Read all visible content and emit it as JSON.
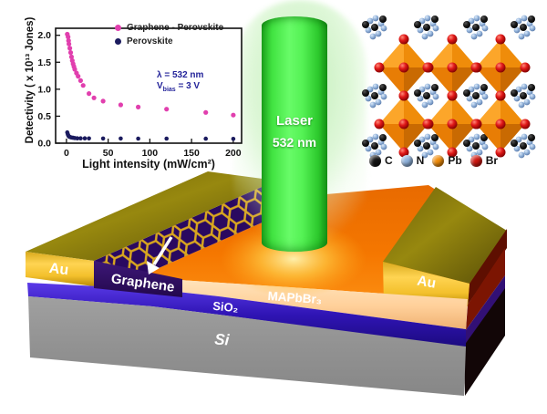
{
  "chart_data": {
    "type": "scatter",
    "title": "",
    "xlabel": "Light intensity (mW/cm²)",
    "ylabel": "Detectivity ( x 10¹³ Jones)",
    "xlim": [
      -13,
      210
    ],
    "ylim": [
      0,
      2.13
    ],
    "x_ticks": [
      "0",
      "50",
      "100",
      "150",
      "200"
    ],
    "y_ticks": [
      "0.0",
      "0.5",
      "1.0",
      "1.5",
      "2.0"
    ],
    "grid": false,
    "legend_position": "top-right",
    "annotation": {
      "line1": "λ = 532 nm",
      "v_pre": "V",
      "v_sub": "bias",
      "v_post": " = 3 V"
    },
    "series": [
      {
        "name": "Graphene - Perovskite",
        "color": "#e13fae",
        "points": [
          [
            1,
            2.02
          ],
          [
            2,
            1.97
          ],
          [
            2.5,
            1.9
          ],
          [
            3,
            1.84
          ],
          [
            4,
            1.76
          ],
          [
            5,
            1.68
          ],
          [
            6,
            1.6
          ],
          [
            7,
            1.53
          ],
          [
            8,
            1.47
          ],
          [
            9,
            1.42
          ],
          [
            10,
            1.37
          ],
          [
            12,
            1.3
          ],
          [
            14,
            1.24
          ],
          [
            17,
            1.16
          ],
          [
            20,
            1.07
          ],
          [
            27,
            0.92
          ],
          [
            33,
            0.84
          ],
          [
            44,
            0.78
          ],
          [
            65,
            0.71
          ],
          [
            86,
            0.67
          ],
          [
            120,
            0.63
          ],
          [
            167,
            0.57
          ],
          [
            200,
            0.52
          ]
        ]
      },
      {
        "name": "Perovskite",
        "color": "#1b1b5e",
        "points": [
          [
            1,
            0.2
          ],
          [
            1.5,
            0.17
          ],
          [
            2,
            0.15
          ],
          [
            2.5,
            0.135
          ],
          [
            3,
            0.125
          ],
          [
            4,
            0.115
          ],
          [
            5,
            0.11
          ],
          [
            6,
            0.105
          ],
          [
            8,
            0.1
          ],
          [
            10,
            0.095
          ],
          [
            13,
            0.09
          ],
          [
            17,
            0.09
          ],
          [
            22,
            0.09
          ],
          [
            27,
            0.088
          ],
          [
            44,
            0.087
          ],
          [
            65,
            0.086
          ],
          [
            86,
            0.085
          ],
          [
            120,
            0.084
          ],
          [
            167,
            0.082
          ],
          [
            200,
            0.08
          ]
        ]
      }
    ]
  },
  "laser": {
    "line1": "Laser",
    "line2": "532 nm",
    "beam_color": "#3ae532"
  },
  "crystal": {
    "legend": [
      {
        "label": "C",
        "color": "#141414"
      },
      {
        "label": "N",
        "color": "#8fb2dc"
      },
      {
        "label": "Pb",
        "color": "#f08c0a"
      },
      {
        "label": "Br",
        "color": "#cf1710"
      }
    ]
  },
  "device": {
    "au_left": "Au",
    "au_right": "Au",
    "graphene": "Graphene",
    "perovskite": "MAPbBr₃",
    "oxide": "SiO₂",
    "substrate": "Si",
    "gold_color": "#f2bd2e",
    "perovskite_top_color": "#f57700",
    "oxide_color": "#2f14b4",
    "substrate_color": "#939393"
  }
}
